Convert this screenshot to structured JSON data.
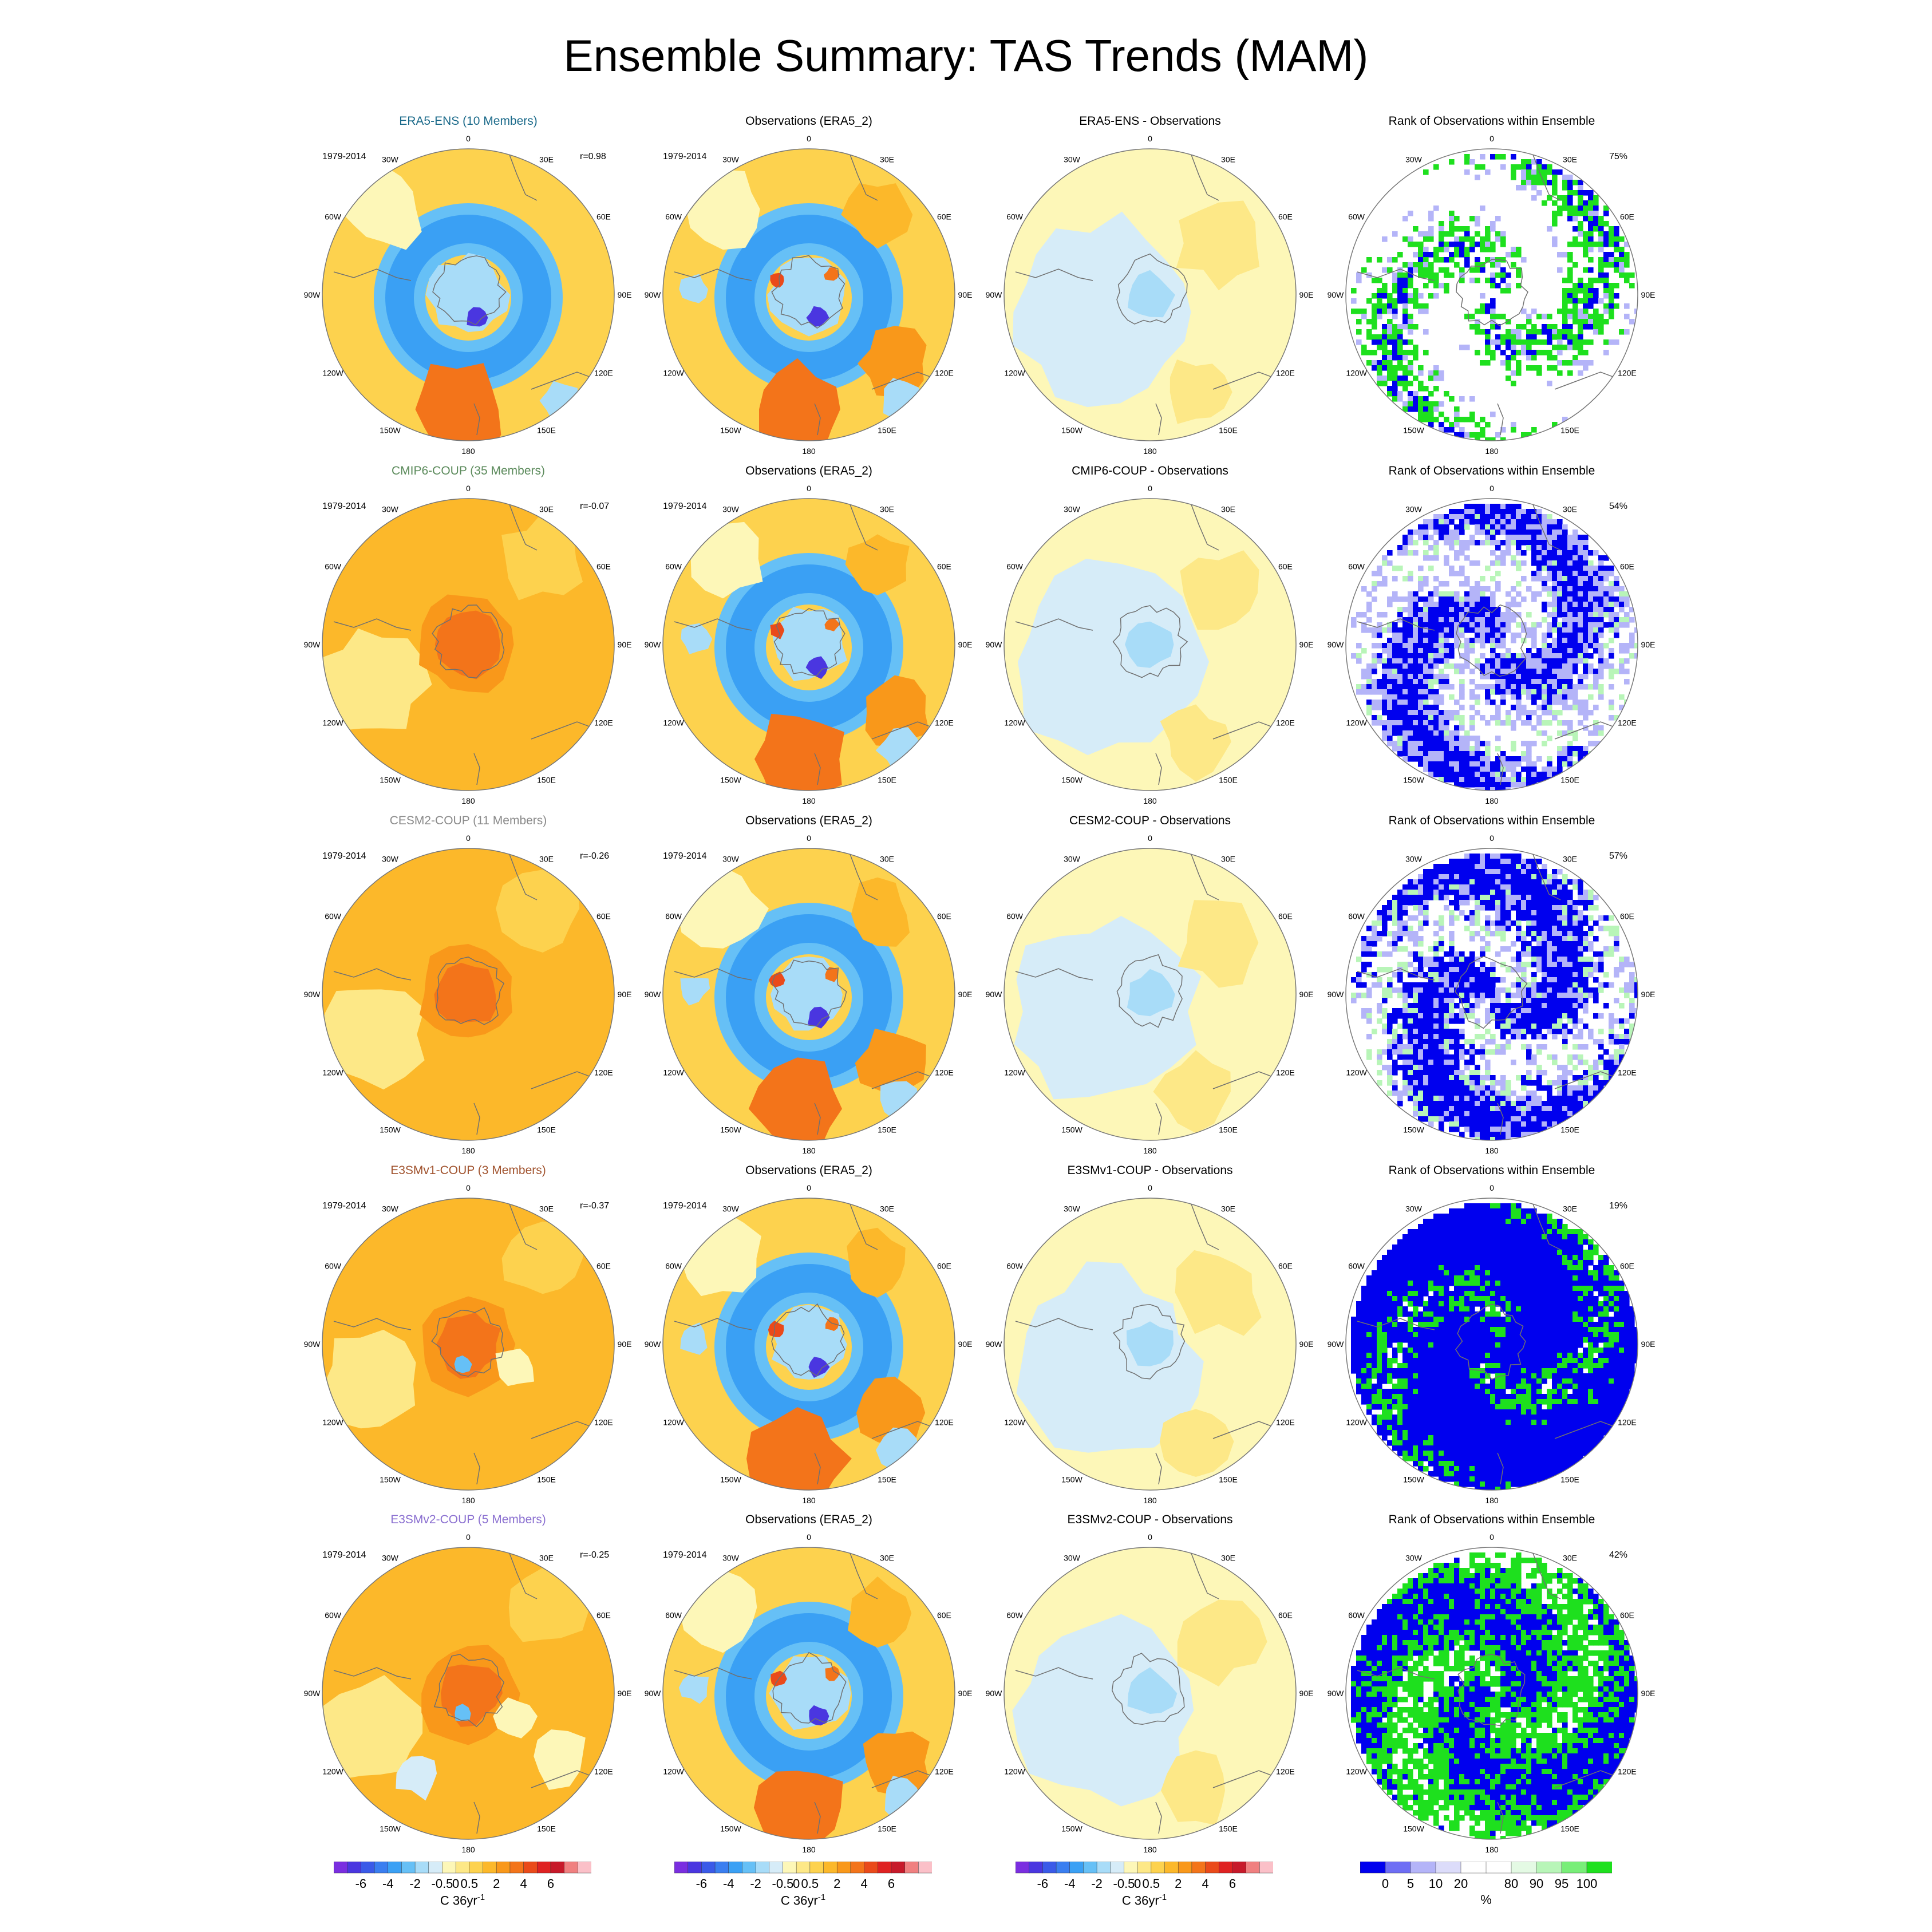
{
  "title": "Ensemble Summary: TAS Trends (MAM)",
  "period": "1979-2014",
  "lon_labels": [
    "0",
    "30E",
    "60E",
    "90E",
    "120E",
    "150E",
    "180",
    "150W",
    "120W",
    "90W",
    "60W",
    "30W"
  ],
  "rows": [
    {
      "ensemble_title": "ERA5-ENS (10 Members)",
      "title_color": "#1b6a8a",
      "corr": "r=0.98",
      "obs_title": "Observations (ERA5_2)",
      "diff_title": "ERA5-ENS - Observations",
      "rank_title": "Rank of Observations within Ensemble",
      "rank_pct": "75%"
    },
    {
      "ensemble_title": "CMIP6-COUP (35 Members)",
      "title_color": "#5b8a5b",
      "corr": "r=-0.07",
      "obs_title": "Observations (ERA5_2)",
      "diff_title": "CMIP6-COUP - Observations",
      "rank_title": "Rank of Observations within Ensemble",
      "rank_pct": "54%"
    },
    {
      "ensemble_title": "CESM2-COUP (11 Members)",
      "title_color": "#8a8a8a",
      "corr": "r=-0.26",
      "obs_title": "Observations (ERA5_2)",
      "diff_title": "CESM2-COUP - Observations",
      "rank_title": "Rank of Observations within Ensemble",
      "rank_pct": "57%"
    },
    {
      "ensemble_title": "E3SMv1-COUP (3 Members)",
      "title_color": "#a0522d",
      "corr": "r=-0.37",
      "obs_title": "Observations (ERA5_2)",
      "diff_title": "E3SMv1-COUP - Observations",
      "rank_title": "Rank of Observations within Ensemble",
      "rank_pct": "19%"
    },
    {
      "ensemble_title": "E3SMv2-COUP (5 Members)",
      "title_color": "#8a6fd0",
      "corr": "r=-0.25",
      "obs_title": "Observations (ERA5_2)",
      "diff_title": "E3SMv2-COUP - Observations",
      "rank_title": "Rank of Observations within Ensemble",
      "rank_pct": "42%"
    }
  ],
  "trend_colorbar": {
    "colors": [
      "#7a2ee0",
      "#4a36e0",
      "#3a5ae8",
      "#3a7ef0",
      "#3aa0f4",
      "#66c0f6",
      "#a8dcf8",
      "#d6ecf8",
      "#fdf7b8",
      "#fde887",
      "#fdd24e",
      "#fcb82a",
      "#f9981a",
      "#f3741a",
      "#ea4a1a",
      "#df2222",
      "#c71a2a",
      "#f08080",
      "#fbc0c8"
    ],
    "ticks": [
      "-6",
      "-4",
      "-2",
      "-0.5",
      "0",
      "0.5",
      "2",
      "4",
      "6"
    ],
    "unit": "C 36yr",
    "unit_sup": "-1"
  },
  "rank_colorbar": {
    "colors": [
      "#0000ee",
      "#6e6ef4",
      "#b4b4f8",
      "#dcdcfa",
      "#ffffff",
      "#ffffff",
      "#e4fae4",
      "#b8f5b8",
      "#78ee78",
      "#1ee01e"
    ],
    "ticks": [
      "0",
      "5",
      "10",
      "20",
      "80",
      "90",
      "95",
      "100"
    ],
    "unit": "%"
  },
  "colors": {
    "land_line": "#707070",
    "rim": "#777777",
    "rank_low": "#0000ee",
    "rank_high": "#1ee01e"
  }
}
